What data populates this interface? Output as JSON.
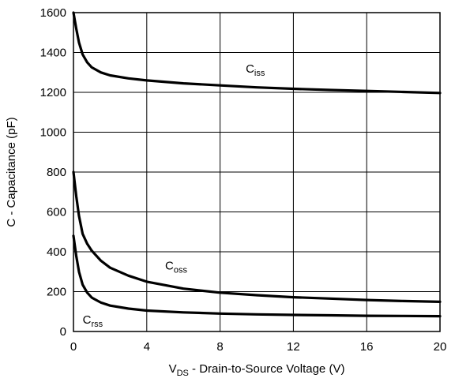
{
  "chart_data": {
    "type": "line",
    "xlabel_main": "V",
    "xlabel_sub": "DS",
    "xlabel_rest": " - Drain-to-Source Voltage (V)",
    "ylabel": "C - Capacitance (pF)",
    "xlim": [
      0,
      20
    ],
    "ylim": [
      0,
      1600
    ],
    "xticks": [
      0,
      4,
      8,
      12,
      16,
      20
    ],
    "yticks": [
      0,
      200,
      400,
      600,
      800,
      1000,
      1200,
      1400,
      1600
    ],
    "grid": true,
    "series": [
      {
        "name": "Ciss",
        "label_main": "C",
        "label_sub": "iss",
        "x": [
          0,
          0.15,
          0.3,
          0.5,
          0.75,
          1.0,
          1.5,
          2,
          3,
          4,
          6,
          8,
          10,
          12,
          14,
          16,
          18,
          20
        ],
        "y": [
          1600,
          1520,
          1450,
          1390,
          1350,
          1325,
          1300,
          1285,
          1270,
          1260,
          1245,
          1235,
          1225,
          1218,
          1212,
          1207,
          1202,
          1197
        ]
      },
      {
        "name": "Coss",
        "label_main": "C",
        "label_sub": "oss",
        "x": [
          0,
          0.15,
          0.3,
          0.5,
          0.75,
          1.0,
          1.5,
          2,
          3,
          4,
          6,
          8,
          10,
          12,
          14,
          16,
          18,
          20
        ],
        "y": [
          800,
          680,
          580,
          490,
          440,
          405,
          355,
          320,
          280,
          250,
          215,
          195,
          182,
          172,
          165,
          158,
          153,
          149
        ]
      },
      {
        "name": "Crss",
        "label_main": "C",
        "label_sub": "rss",
        "x": [
          0,
          0.15,
          0.3,
          0.5,
          0.75,
          1.0,
          1.5,
          2,
          3,
          4,
          6,
          8,
          10,
          12,
          14,
          16,
          18,
          20
        ],
        "y": [
          480,
          380,
          300,
          235,
          195,
          170,
          145,
          130,
          115,
          105,
          96,
          90,
          86,
          83,
          81,
          79,
          78,
          77
        ]
      }
    ]
  }
}
